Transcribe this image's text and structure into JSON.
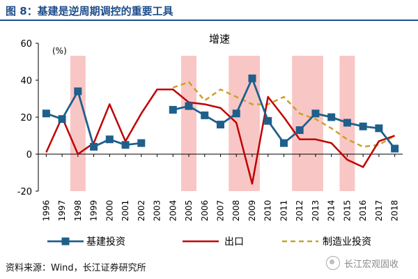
{
  "header": {
    "title": "图 8：基建是逆周期调控的重要工具"
  },
  "footer": {
    "source": "资料来源：Wind，长江证券研究所",
    "watermark": "长江宏观固收"
  },
  "colors": {
    "title": "#1f4e8c",
    "shading": "#f9c6c6",
    "infrastructure": "#1f5f8b",
    "export": "#c00000",
    "manufacturing": "#c9a227"
  },
  "chart_data": {
    "type": "line",
    "title": "增速",
    "ylabel": "(%)",
    "xlabel": "",
    "ylim": [
      -20,
      60
    ],
    "yticks": [
      -20,
      0,
      20,
      40,
      60
    ],
    "grid": false,
    "legend_position": "bottom",
    "x": [
      "1996",
      "1997",
      "1998",
      "1999",
      "2000",
      "2001",
      "2002",
      "2003",
      "2004",
      "2005",
      "2006",
      "2007",
      "2008",
      "2009",
      "2010",
      "2011",
      "2012",
      "2013",
      "2014",
      "2015",
      "2016",
      "2017",
      "2018"
    ],
    "shaded_periods": [
      {
        "from": "1998",
        "to": "1998"
      },
      {
        "from": "2005",
        "to": "2005"
      },
      {
        "from": "2008",
        "to": "2009"
      },
      {
        "from": "2012",
        "to": "2013"
      },
      {
        "from": "2015",
        "to": "2015"
      }
    ],
    "series": [
      {
        "name": "基建投资",
        "style": "solid-marker",
        "values": [
          22,
          19,
          34,
          4,
          8,
          5,
          6,
          null,
          24,
          26,
          21,
          16,
          22,
          41,
          18,
          6,
          13,
          22,
          20,
          17,
          15,
          14,
          3
        ]
      },
      {
        "name": "出口",
        "style": "solid",
        "values": [
          1,
          20,
          0,
          6,
          27,
          7,
          22,
          35,
          35,
          28,
          27,
          25,
          17,
          -16,
          31,
          20,
          8,
          8,
          6,
          -3,
          -7,
          7,
          10
        ]
      },
      {
        "name": "制造业投资",
        "style": "dashed",
        "values": [
          null,
          null,
          null,
          null,
          null,
          null,
          null,
          null,
          36,
          39,
          29,
          35,
          31,
          27,
          27,
          31,
          22,
          19,
          14,
          8,
          4,
          5,
          10
        ]
      }
    ]
  }
}
